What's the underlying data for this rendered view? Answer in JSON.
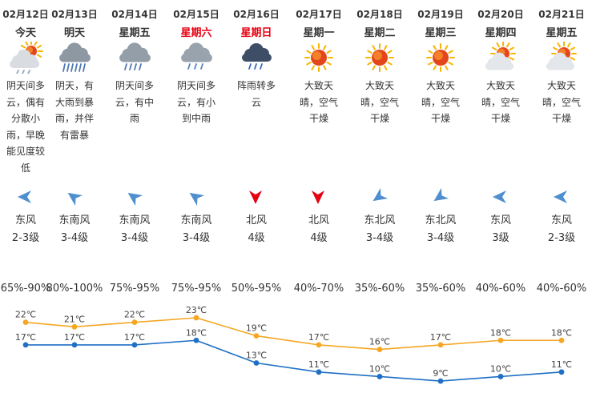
{
  "days": [
    {
      "date": "02月12日",
      "weekday": "今天",
      "weekend": false,
      "icon": "cloudy-sun-rain",
      "desc": "阴天间多云，偶有分散小雨，早晚能见度较低",
      "wind_icon": "wind-arrow-east",
      "wind_dir": "东风",
      "wind_level": "2-3级",
      "humidity": "65%-90%",
      "high": 22,
      "high_label": "22℃",
      "low": 17,
      "low_label": "17℃"
    },
    {
      "date": "02月13日",
      "weekday": "明天",
      "weekend": false,
      "icon": "heavy-rain",
      "desc": "阴天，有大雨到暴雨，并伴有雷暴",
      "wind_icon": "wind-arrow-southeast",
      "wind_dir": "东南风",
      "wind_level": "3-4级",
      "humidity": "80%-100%",
      "high": 21,
      "high_label": "21℃",
      "low": 17,
      "low_label": "17℃"
    },
    {
      "date": "02月14日",
      "weekday": "星期五",
      "weekend": false,
      "icon": "moderate-rain",
      "desc": "阴天间多云，有中雨",
      "wind_icon": "wind-arrow-southeast",
      "wind_dir": "东南风",
      "wind_level": "3-4级",
      "humidity": "75%-95%",
      "high": 22,
      "high_label": "22℃",
      "low": 17,
      "low_label": "17℃"
    },
    {
      "date": "02月15日",
      "weekday": "星期六",
      "weekend": true,
      "icon": "light-rain",
      "desc": "阴天间多云，有小到中雨",
      "wind_icon": "wind-arrow-southeast",
      "wind_dir": "东南风",
      "wind_level": "3-4级",
      "humidity": "75%-95%",
      "high": 23,
      "high_label": "23℃",
      "low": 18,
      "low_label": "18℃"
    },
    {
      "date": "02月16日",
      "weekday": "星期日",
      "weekend": true,
      "icon": "shower",
      "desc": "阵雨转多云",
      "wind_icon": "wind-arrow-north",
      "wind_dir": "北风",
      "wind_level": "4级",
      "humidity": "50%-95%",
      "high": 19,
      "high_label": "19℃",
      "low": 13,
      "low_label": "13℃"
    },
    {
      "date": "02月17日",
      "weekday": "星期一",
      "weekend": false,
      "icon": "sunny",
      "desc": "大致天晴，空气干燥",
      "wind_icon": "wind-arrow-north",
      "wind_dir": "北风",
      "wind_level": "4级",
      "humidity": "40%-70%",
      "high": 17,
      "high_label": "17℃",
      "low": 11,
      "low_label": "11℃"
    },
    {
      "date": "02月18日",
      "weekday": "星期二",
      "weekend": false,
      "icon": "sunny",
      "desc": "大致天晴，空气干燥",
      "wind_icon": "wind-arrow-northeast",
      "wind_dir": "东北风",
      "wind_level": "3-4级",
      "humidity": "35%-60%",
      "high": 16,
      "high_label": "16℃",
      "low": 10,
      "low_label": "10℃"
    },
    {
      "date": "02月19日",
      "weekday": "星期三",
      "weekend": false,
      "icon": "sunny",
      "desc": "大致天晴，空气干燥",
      "wind_icon": "wind-arrow-northeast",
      "wind_dir": "东北风",
      "wind_level": "3-4级",
      "humidity": "35%-60%",
      "high": 17,
      "high_label": "17℃",
      "low": 9,
      "low_label": "9℃"
    },
    {
      "date": "02月20日",
      "weekday": "星期四",
      "weekend": false,
      "icon": "sunny-cloud",
      "desc": "大致天晴，空气干燥",
      "wind_icon": "wind-arrow-east",
      "wind_dir": "东风",
      "wind_level": "3级",
      "humidity": "40%-60%",
      "high": 18,
      "high_label": "18℃",
      "low": 10,
      "low_label": "10℃"
    },
    {
      "date": "02月21日",
      "weekday": "星期五",
      "weekend": false,
      "icon": "sunny-cloud",
      "desc": "大致天晴，空气干燥",
      "wind_icon": "wind-arrow-east",
      "wind_dir": "东风",
      "wind_level": "2-3级",
      "humidity": "40%-60%",
      "high": 18,
      "high_label": "18℃",
      "low": 11,
      "low_label": "11℃"
    }
  ],
  "colors": {
    "high_line": "#f5a623",
    "low_line": "#1f6fc5",
    "weekend_text": "#e60012",
    "wind_arrow_blue": "#4f8fcf",
    "wind_arrow_red": "#e60012"
  }
}
